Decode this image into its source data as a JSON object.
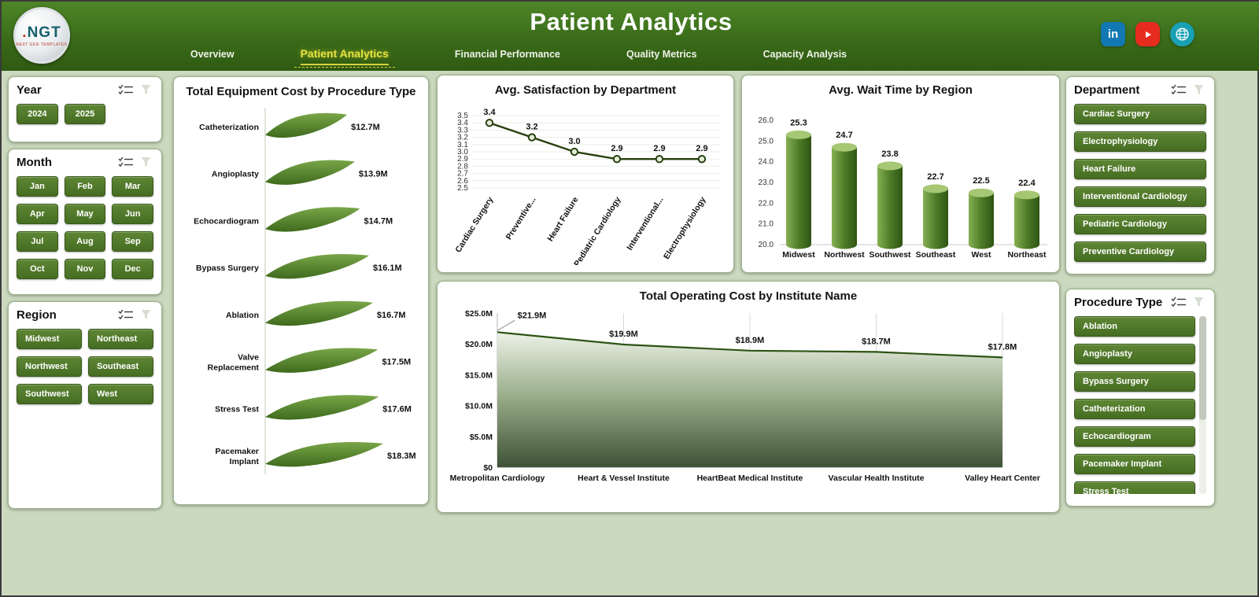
{
  "theme": {
    "primary_green": "#4a7526",
    "dark_green": "#2f5a12",
    "accent_yellow": "#e9e43e",
    "page_bg": "#cbdabf",
    "linkedin_blue": "#1178b3",
    "youtube_red": "#e62c1f",
    "globe_teal": "#19a0b4"
  },
  "header": {
    "title": "Patient Analytics",
    "logo": {
      "text": "NGT",
      "subtext": "NEXT GEN TEMPLATES"
    },
    "tabs": [
      {
        "label": "Overview",
        "active": false
      },
      {
        "label": "Patient Analytics",
        "active": true
      },
      {
        "label": "Financial Performance",
        "active": false
      },
      {
        "label": "Quality Metrics",
        "active": false
      },
      {
        "label": "Capacity Analysis",
        "active": false
      }
    ],
    "social_icons": [
      "linkedin-icon",
      "youtube-icon",
      "globe-icon"
    ]
  },
  "ui_icons": [
    "multi-select-icon",
    "clear-filter-icon"
  ],
  "filters": {
    "year": {
      "title": "Year",
      "options": [
        "2024",
        "2025"
      ]
    },
    "month": {
      "title": "Month",
      "options": [
        "Jan",
        "Feb",
        "Mar",
        "Apr",
        "May",
        "Jun",
        "Jul",
        "Aug",
        "Sep",
        "Oct",
        "Nov",
        "Dec"
      ]
    },
    "region": {
      "title": "Region",
      "options": [
        "Midwest",
        "Northeast",
        "Northwest",
        "Southeast",
        "Southwest",
        "West"
      ]
    },
    "department": {
      "title": "Department",
      "options": [
        "Cardiac Surgery",
        "Electrophysiology",
        "Heart Failure",
        "Interventional Cardiology",
        "Pediatric Cardiology",
        "Preventive Cardiology"
      ]
    },
    "procedure_type": {
      "title": "Procedure Type",
      "options": [
        "Ablation",
        "Angioplasty",
        "Bypass Surgery",
        "Catheterization",
        "Echocardiogram",
        "Pacemaker Implant",
        "Stress Test"
      ]
    }
  },
  "chart_data": [
    {
      "type": "bar",
      "orientation": "horizontal",
      "title": "Total Equipment Cost by Procedure Type",
      "categories": [
        "Catheterization",
        "Angioplasty",
        "Echocardiogram",
        "Bypass Surgery",
        "Ablation",
        "Valve Replacement",
        "Stress Test",
        "Pacemaker Implant"
      ],
      "values": [
        12.7,
        13.9,
        14.7,
        16.1,
        16.7,
        17.5,
        17.6,
        18.3
      ],
      "labels": [
        "$12.7M",
        "$13.9M",
        "$14.7M",
        "$16.1M",
        "$16.7M",
        "$17.5M",
        "$17.6M",
        "$18.3M"
      ],
      "unit": "USD millions"
    },
    {
      "type": "line",
      "title": "Avg. Satisfaction by Department",
      "categories": [
        "Cardiac Surgery",
        "Preventive...",
        "Heart Failure",
        "Pediatric Cardiology",
        "Interventional...",
        "Electrophysiology"
      ],
      "values": [
        3.4,
        3.2,
        3.0,
        2.9,
        2.9,
        2.9
      ],
      "labels": [
        "3.4",
        "3.2",
        "3.0",
        "2.9",
        "2.9",
        "2.9"
      ],
      "ylim": [
        2.5,
        3.5
      ],
      "yticks": [
        "3.5",
        "3.4",
        "3.3",
        "3.2",
        "3.1",
        "3.0",
        "2.9",
        "2.8",
        "2.7",
        "2.6",
        "2.5"
      ],
      "grid": true
    },
    {
      "type": "bar",
      "orientation": "vertical",
      "title": "Avg. Wait Time by Region",
      "categories": [
        "Midwest",
        "Northwest",
        "Southwest",
        "Southeast",
        "West",
        "Northeast"
      ],
      "values": [
        25.3,
        24.7,
        23.8,
        22.7,
        22.5,
        22.4
      ],
      "labels": [
        "25.3",
        "24.7",
        "23.8",
        "22.7",
        "22.5",
        "22.4"
      ],
      "ylim": [
        20.0,
        26.0
      ],
      "yticks": [
        "26.0",
        "25.0",
        "24.0",
        "23.0",
        "22.0",
        "21.0",
        "20.0"
      ]
    },
    {
      "type": "area",
      "title": "Total Operating Cost by Institute Name",
      "categories": [
        "Metropolitan Cardiology",
        "Heart & Vessel Institute",
        "HeartBeat Medical Institute",
        "Vascular Health Institute",
        "Valley Heart Center"
      ],
      "values": [
        21.9,
        19.9,
        18.9,
        18.7,
        17.8
      ],
      "labels": [
        "$21.9M",
        "$19.9M",
        "$18.9M",
        "$18.7M",
        "$17.8M"
      ],
      "ylim": [
        0,
        25
      ],
      "yticks": [
        "$25.0M",
        "$20.0M",
        "$15.0M",
        "$10.0M",
        "$5.0M",
        "$0"
      ],
      "ytick_values": [
        25,
        20,
        15,
        10,
        5,
        0
      ],
      "grid": "vertical"
    }
  ]
}
